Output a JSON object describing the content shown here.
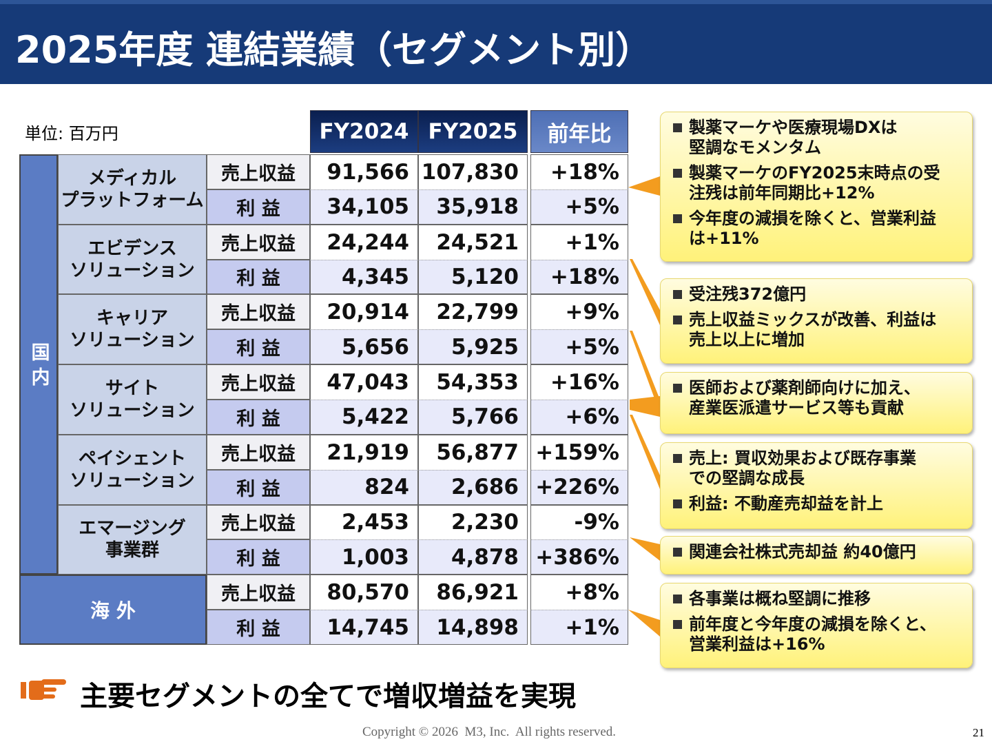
{
  "header": {
    "title": "2025年度 連結業績（セグメント別）"
  },
  "table": {
    "unit": "単位: 百万円",
    "columns": [
      "FY2024",
      "FY2025",
      "前年比"
    ],
    "domestic": {
      "label": "国 内",
      "segments": [
        {
          "name": [
            "メディカル",
            "プラットフォーム"
          ],
          "rows": [
            [
              "売上収益",
              "91,566",
              "107,830",
              "+18%"
            ],
            [
              "利 益",
              "34,105",
              "35,918",
              "+5%"
            ]
          ]
        },
        {
          "name": [
            "エビデンス",
            "ソリューション"
          ],
          "rows": [
            [
              "売上収益",
              "24,244",
              "24,521",
              "+1%"
            ],
            [
              "利 益",
              "4,345",
              "5,120",
              "+18%"
            ]
          ]
        },
        {
          "name": [
            "キャリア",
            "ソリューション"
          ],
          "rows": [
            [
              "売上収益",
              "20,914",
              "22,799",
              "+9%"
            ],
            [
              "利 益",
              "5,656",
              "5,925",
              "+5%"
            ]
          ]
        },
        {
          "name": [
            "サイト",
            "ソリューション"
          ],
          "rows": [
            [
              "売上収益",
              "47,043",
              "54,353",
              "+16%"
            ],
            [
              "利 益",
              "5,422",
              "5,766",
              "+6%"
            ]
          ]
        },
        {
          "name": [
            "ペイシェント",
            "ソリューション"
          ],
          "rows": [
            [
              "売上収益",
              "21,919",
              "56,877",
              "+159%"
            ],
            [
              "利 益",
              "824",
              "2,686",
              "+226%"
            ]
          ]
        },
        {
          "name": [
            "エマージング",
            "事業群"
          ],
          "rows": [
            [
              "売上収益",
              "2,453",
              "2,230",
              "-9%"
            ],
            [
              "利 益",
              "1,003",
              "4,878",
              "+386%"
            ]
          ]
        }
      ]
    },
    "overseas": {
      "label": "海 外",
      "rows": [
        [
          "売上収益",
          "80,570",
          "86,921",
          "+8%"
        ],
        [
          "利 益",
          "14,745",
          "14,898",
          "+1%"
        ]
      ]
    }
  },
  "callouts": [
    {
      "bullets": [
        [
          "製薬マーケや医療現場DXは",
          "堅調なモメンタム"
        ],
        [
          "製薬マーケのFY2025末時点の受",
          "注残は前年同期比+12%"
        ],
        [
          "今年度の減損を除くと、営業利益",
          "は+11%"
        ]
      ]
    },
    {
      "bullets": [
        [
          "受注残372億円"
        ],
        [
          "売上収益ミックスが改善、利益は",
          "売上以上に増加"
        ]
      ]
    },
    {
      "bullets": [
        [
          "医師および薬剤師向けに加え、",
          "産業医派遣サービス等も貢献"
        ]
      ]
    },
    {
      "bullets": [
        [
          "売上: 買収効果および既存事業",
          "での堅調な成長"
        ],
        [
          "利益: 不動産売却益を計上"
        ]
      ]
    },
    {
      "bullets": [
        [
          "関連会社株式売却益 約40億円"
        ]
      ]
    },
    {
      "bullets": [
        [
          "各事業は概ね堅調に推移"
        ],
        [
          "前年度と今年度の減損を除くと、",
          "営業利益は+16%"
        ]
      ]
    }
  ],
  "conclusion": "主要セグメントの全てで増収増益を実現",
  "footer": {
    "copyright": "Copyright © 2026  M3, Inc.  All rights reserved.",
    "page": "21"
  }
}
